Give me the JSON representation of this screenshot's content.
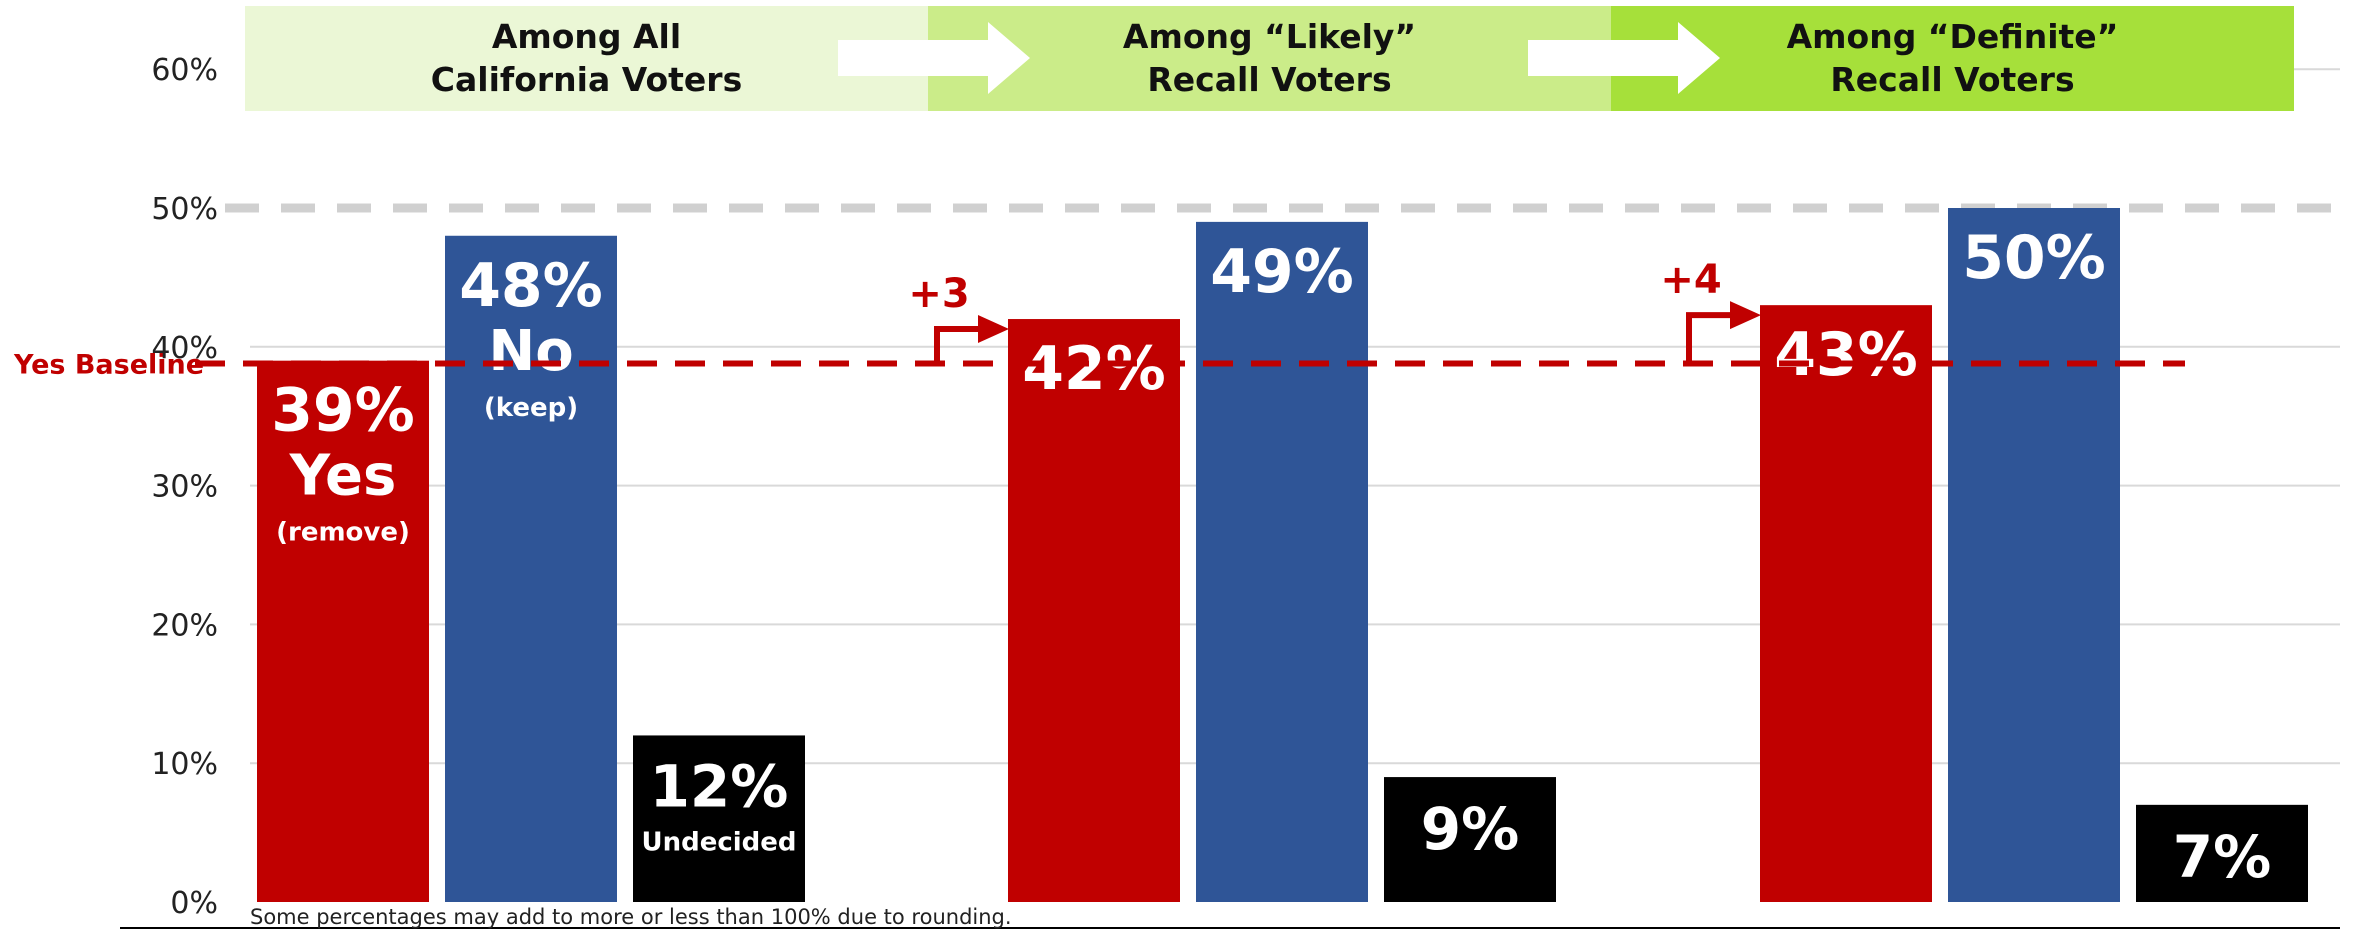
{
  "colors": {
    "yes": "#C00000",
    "no": "#2F5597",
    "undecided": "#000000",
    "header_1": "#EBF7D6",
    "header_2": "#CBEC89",
    "header_3": "#A6E03A",
    "gridline": "#D9D9D9",
    "dashed_50": "#D0D0D0",
    "baseline": "#C00000"
  },
  "headers": [
    {
      "line1": "Among All",
      "line2": "California Voters"
    },
    {
      "line1": "Among “Likely”",
      "line2": "Recall Voters"
    },
    {
      "line1": "Among “Definite”",
      "line2": "Recall Voters"
    }
  ],
  "labels": {
    "yes_word": "Yes",
    "yes_sub": "(remove)",
    "no_word": "No",
    "no_sub": "(keep)",
    "undecided_word": "Undecided",
    "baseline": "Yes Baseline",
    "delta_2": "+3",
    "delta_3": "+4",
    "footnote": "Some percentages may add to more or less than 100% due to rounding."
  },
  "chart_data": {
    "type": "bar",
    "categories": [
      "Among All California Voters",
      "Among “Likely” Recall Voters",
      "Among “Definite” Recall Voters"
    ],
    "series": [
      {
        "values": [
          39,
          42,
          43
        ],
        "labels": [
          "39%",
          "42%",
          "43%"
        ]
      },
      {
        "values": [
          48,
          49,
          50
        ],
        "labels": [
          "48%",
          "49%",
          "50%"
        ]
      },
      {
        "values": [
          12,
          9,
          7
        ],
        "labels": [
          "12%",
          "9%",
          "7%"
        ]
      }
    ],
    "ylim": [
      0,
      60
    ],
    "yticks": [
      0,
      10,
      20,
      30,
      40,
      50,
      60
    ],
    "ytick_labels": [
      "0%",
      "10%",
      "20%",
      "30%",
      "40%",
      "50%",
      "60%"
    ],
    "grid": true,
    "reference_line": {
      "value": 50,
      "style": "dashed"
    },
    "baseline_line": {
      "value": 38.8,
      "label": "Yes Baseline",
      "style": "dashed"
    },
    "deltas": [
      "+3",
      "+4"
    ]
  }
}
